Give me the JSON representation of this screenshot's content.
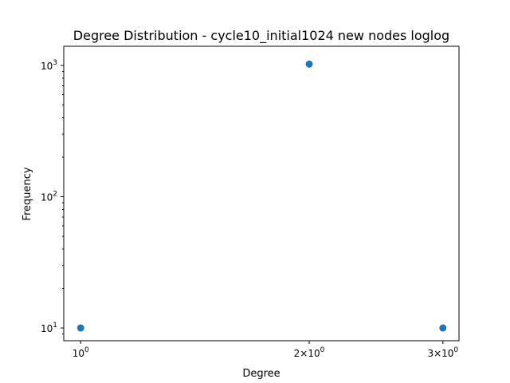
{
  "chart_data": {
    "type": "scatter",
    "title": "Degree Distribution - cycle10_initial1024 new nodes loglog",
    "xlabel": "Degree",
    "ylabel": "Frequency",
    "xscale": "log",
    "yscale": "log",
    "xlim": [
      0.95,
      3.15
    ],
    "ylim": [
      8,
      1400
    ],
    "grid": false,
    "marker_color": "#1f77b4",
    "x_ticks": [
      {
        "value": 1,
        "base": "10",
        "exp": "0",
        "mult": ""
      },
      {
        "value": 2,
        "base": "10",
        "exp": "0",
        "mult": "2×"
      },
      {
        "value": 3,
        "base": "10",
        "exp": "0",
        "mult": "3×"
      }
    ],
    "y_ticks": [
      {
        "value": 10,
        "base": "10",
        "exp": "1"
      },
      {
        "value": 100,
        "base": "10",
        "exp": "2"
      },
      {
        "value": 1000,
        "base": "10",
        "exp": "3"
      }
    ],
    "points": [
      {
        "x": 1,
        "y": 10
      },
      {
        "x": 2,
        "y": 1024
      },
      {
        "x": 3,
        "y": 10
      }
    ]
  }
}
